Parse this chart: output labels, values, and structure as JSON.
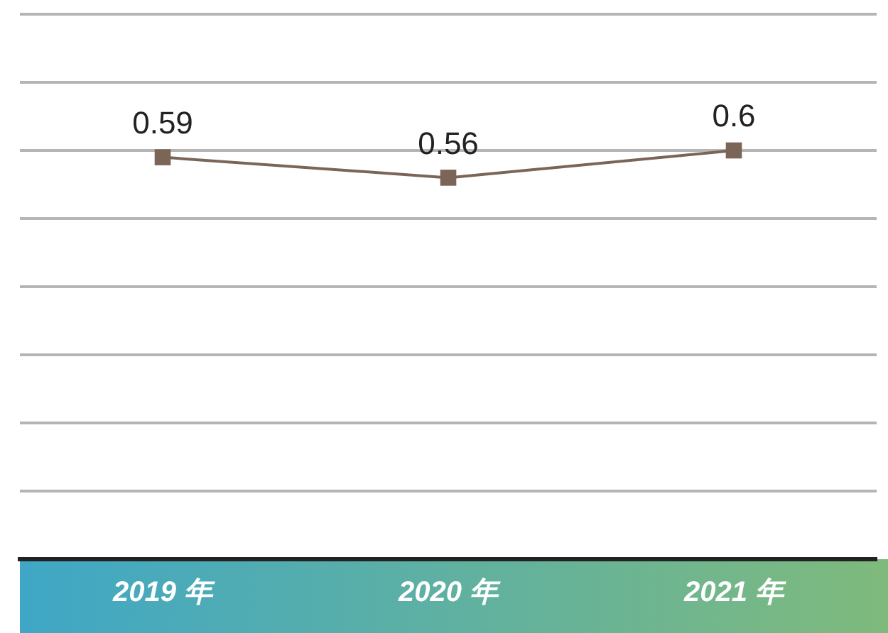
{
  "chart_data": {
    "type": "line",
    "categories": [
      "2019 年",
      "2020 年",
      "2021 年"
    ],
    "series": [
      {
        "color": "#7a6556",
        "values": [
          0.59,
          0.56,
          0.6
        ]
      }
    ],
    "ylim": [
      0,
      0.8
    ],
    "yticks": [
      {
        "value": 0,
        "label": null
      },
      {
        "value": 0.1,
        "label": null
      },
      {
        "value": 0.2,
        "label": null
      },
      {
        "value": 0.3,
        "label": null
      },
      {
        "value": 0.4,
        "label": null
      },
      {
        "value": 0.5,
        "label": null
      },
      {
        "value": 0.6,
        "label": null
      },
      {
        "value": 0.7,
        "label": null
      },
      {
        "value": 0.8,
        "label": null
      }
    ],
    "grid": "y",
    "legend": false,
    "tick_labels": "x",
    "marker": "square",
    "line_style": "solid",
    "data_labels": true
  }
}
